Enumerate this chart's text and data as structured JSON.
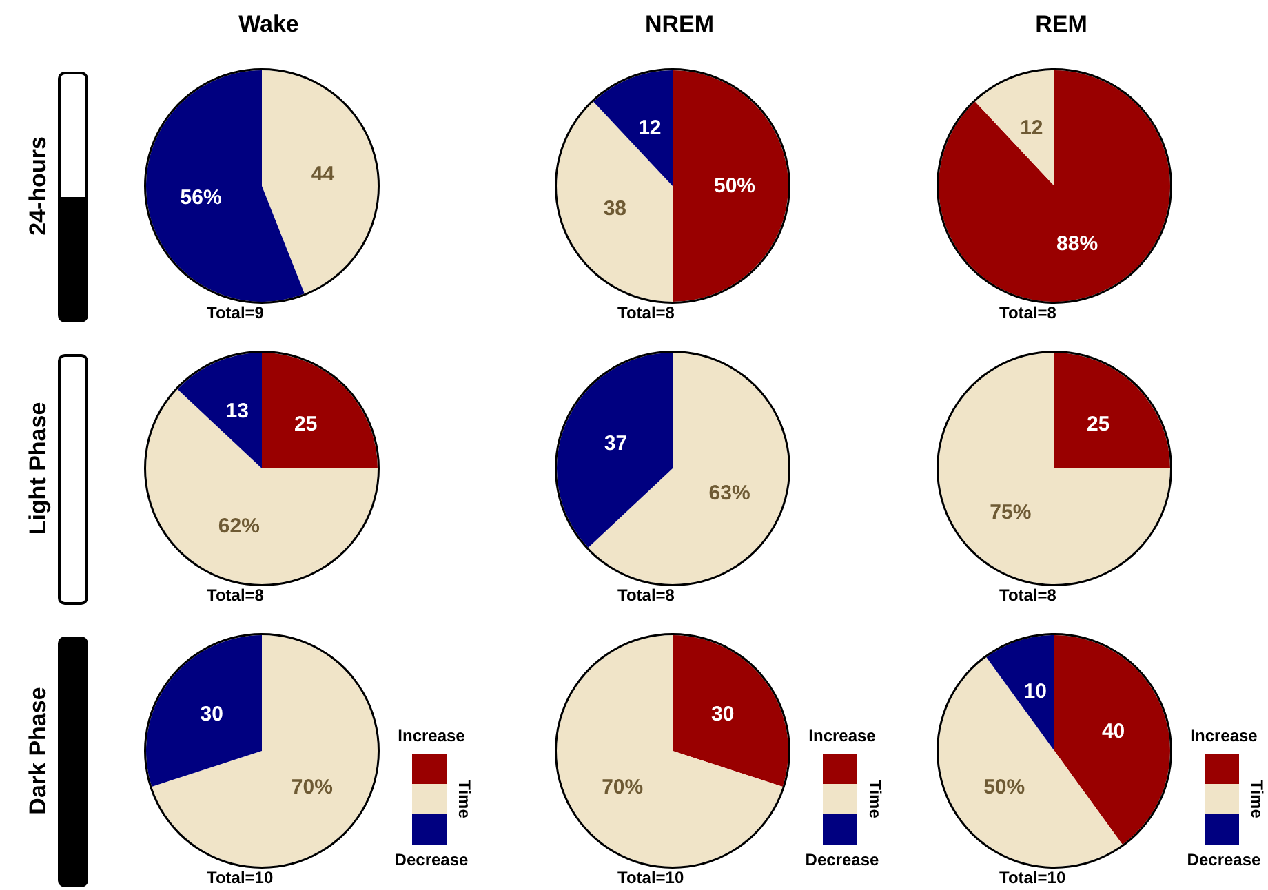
{
  "chart_data": [
    {
      "type": "pie",
      "title": "Wake",
      "ylabel": "24-hours",
      "categories": [
        null,
        null,
        null
      ],
      "values": [
        0,
        44,
        56
      ],
      "value_labels": [
        null,
        "44",
        "56%"
      ],
      "colors": [
        "#990000",
        "#f0e4c8",
        "#000080"
      ],
      "annotations": [
        "Total=9"
      ]
    },
    {
      "type": "pie",
      "title": "NREM",
      "categories": [
        null,
        null,
        null
      ],
      "values": [
        50,
        38,
        12
      ],
      "value_labels": [
        "50%",
        "38",
        "12"
      ],
      "colors": [
        "#990000",
        "#f0e4c8",
        "#000080"
      ],
      "annotations": [
        "Total=8"
      ]
    },
    {
      "type": "pie",
      "title": "REM",
      "categories": [
        null,
        null,
        null
      ],
      "values": [
        88,
        12,
        0
      ],
      "value_labels": [
        "88%",
        "12",
        null
      ],
      "colors": [
        "#990000",
        "#f0e4c8",
        "#000080"
      ],
      "annotations": [
        "Total=8"
      ]
    },
    {
      "type": "pie",
      "ylabel": "Light Phase",
      "categories": [
        null,
        null,
        null
      ],
      "values": [
        25,
        62,
        13
      ],
      "value_labels": [
        "25",
        "62%",
        "13"
      ],
      "colors": [
        "#990000",
        "#f0e4c8",
        "#000080"
      ],
      "annotations": [
        "Total=8"
      ]
    },
    {
      "type": "pie",
      "categories": [
        null,
        null,
        null
      ],
      "values": [
        0,
        63,
        37
      ],
      "value_labels": [
        null,
        "63%",
        "37"
      ],
      "colors": [
        "#990000",
        "#f0e4c8",
        "#000080"
      ],
      "annotations": [
        "Total=8"
      ]
    },
    {
      "type": "pie",
      "categories": [
        null,
        null,
        null
      ],
      "values": [
        25,
        75,
        0
      ],
      "value_labels": [
        "25",
        "75%",
        null
      ],
      "colors": [
        "#990000",
        "#f0e4c8",
        "#000080"
      ],
      "annotations": [
        "Total=8"
      ]
    },
    {
      "type": "pie",
      "ylabel": "Dark Phase",
      "categories": [
        "Increase",
        null,
        "Decrease"
      ],
      "values": [
        0,
        70,
        30
      ],
      "value_labels": [
        null,
        "70%",
        "30"
      ],
      "colors": [
        "#990000",
        "#f0e4c8",
        "#000080"
      ],
      "annotations": [
        "Total=10"
      ],
      "legend": "right",
      "legend_title": "Time"
    },
    {
      "type": "pie",
      "categories": [
        "Increase",
        null,
        "Decrease"
      ],
      "values": [
        30,
        70,
        0
      ],
      "value_labels": [
        "30",
        "70%",
        null
      ],
      "colors": [
        "#990000",
        "#f0e4c8",
        "#000080"
      ],
      "annotations": [
        "Total=10"
      ],
      "legend": "right",
      "legend_title": "Time"
    },
    {
      "type": "pie",
      "categories": [
        "Increase",
        null,
        "Decrease"
      ],
      "values": [
        40,
        50,
        10
      ],
      "value_labels": [
        "40",
        "50%",
        "10"
      ],
      "colors": [
        "#990000",
        "#f0e4c8",
        "#000080"
      ],
      "annotations": [
        "Total=10"
      ],
      "legend": "right",
      "legend_title": "Time"
    }
  ]
}
